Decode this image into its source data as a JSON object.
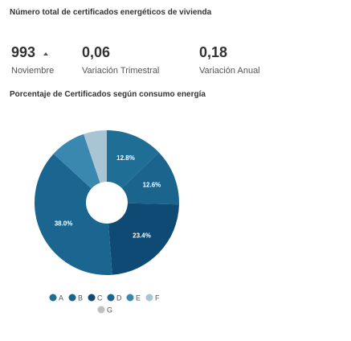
{
  "header": {
    "title": "Número total de certificados energéticos de vivienda"
  },
  "kpis": [
    {
      "value": "993",
      "label": "Noviembre"
    },
    {
      "value": "0,06",
      "label": "Variación Trimestral"
    },
    {
      "value": "0,18",
      "label": "Variación Anual"
    }
  ],
  "chart_data": {
    "type": "pie",
    "title": "Porcentaje de Certificados según consumo energía",
    "categories": [
      "A",
      "B",
      "C",
      "D",
      "E",
      "F",
      "G"
    ],
    "values": [
      12.8,
      12.6,
      23.4,
      38.0,
      8.0,
      5.2,
      0
    ],
    "value_labels": [
      "12.8%",
      "12.6%",
      "23.4%",
      "38.0%",
      null,
      null,
      null
    ],
    "colors": [
      "#1e6e96",
      "#1b648d",
      "#0e4a73",
      "#1a6690",
      "#3a87b0",
      "#a9c4d3",
      "#c0c0c0"
    ],
    "legend": "bottom"
  }
}
